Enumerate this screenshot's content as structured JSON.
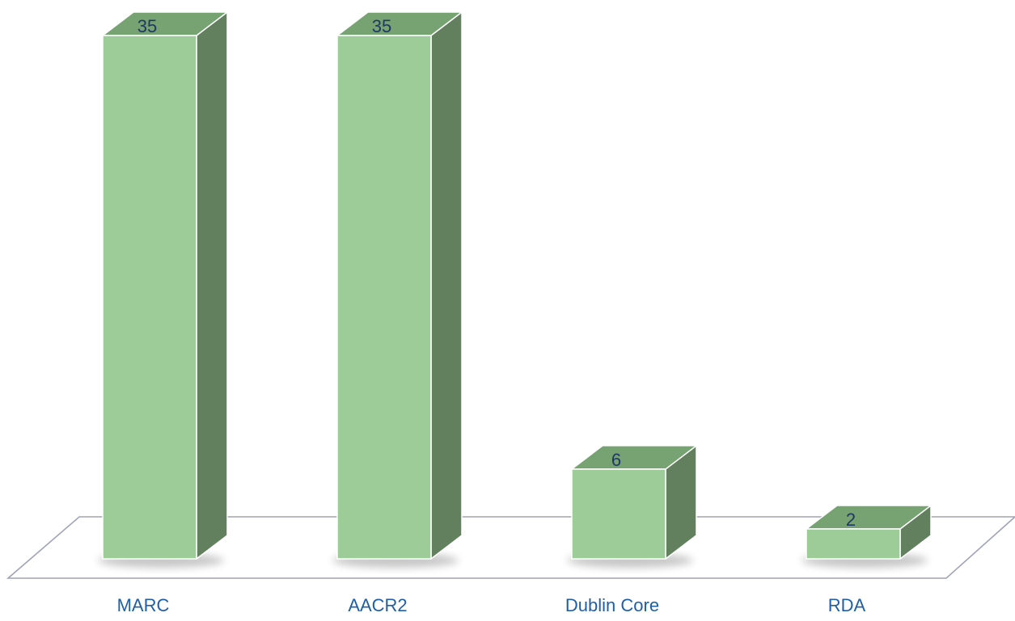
{
  "chart_data": {
    "type": "bar",
    "categories": [
      "MARC",
      "AACR2",
      "Dublin Core",
      "RDA"
    ],
    "values": [
      35,
      35,
      6,
      2
    ],
    "title": "",
    "xlabel": "",
    "ylabel": "",
    "ylim": [
      0,
      35
    ],
    "grid": false,
    "legend": "none",
    "data_labels": [
      "35",
      "35",
      "6",
      "2"
    ]
  },
  "colors": {
    "bar_front": "#9dcc98",
    "bar_top": "#77a272",
    "bar_side": "#62805e",
    "bar_edge": "#ffffff",
    "floor_line": "#a0a4b8",
    "value_label": "#1f3864",
    "category_label": "#1f5fa8"
  }
}
